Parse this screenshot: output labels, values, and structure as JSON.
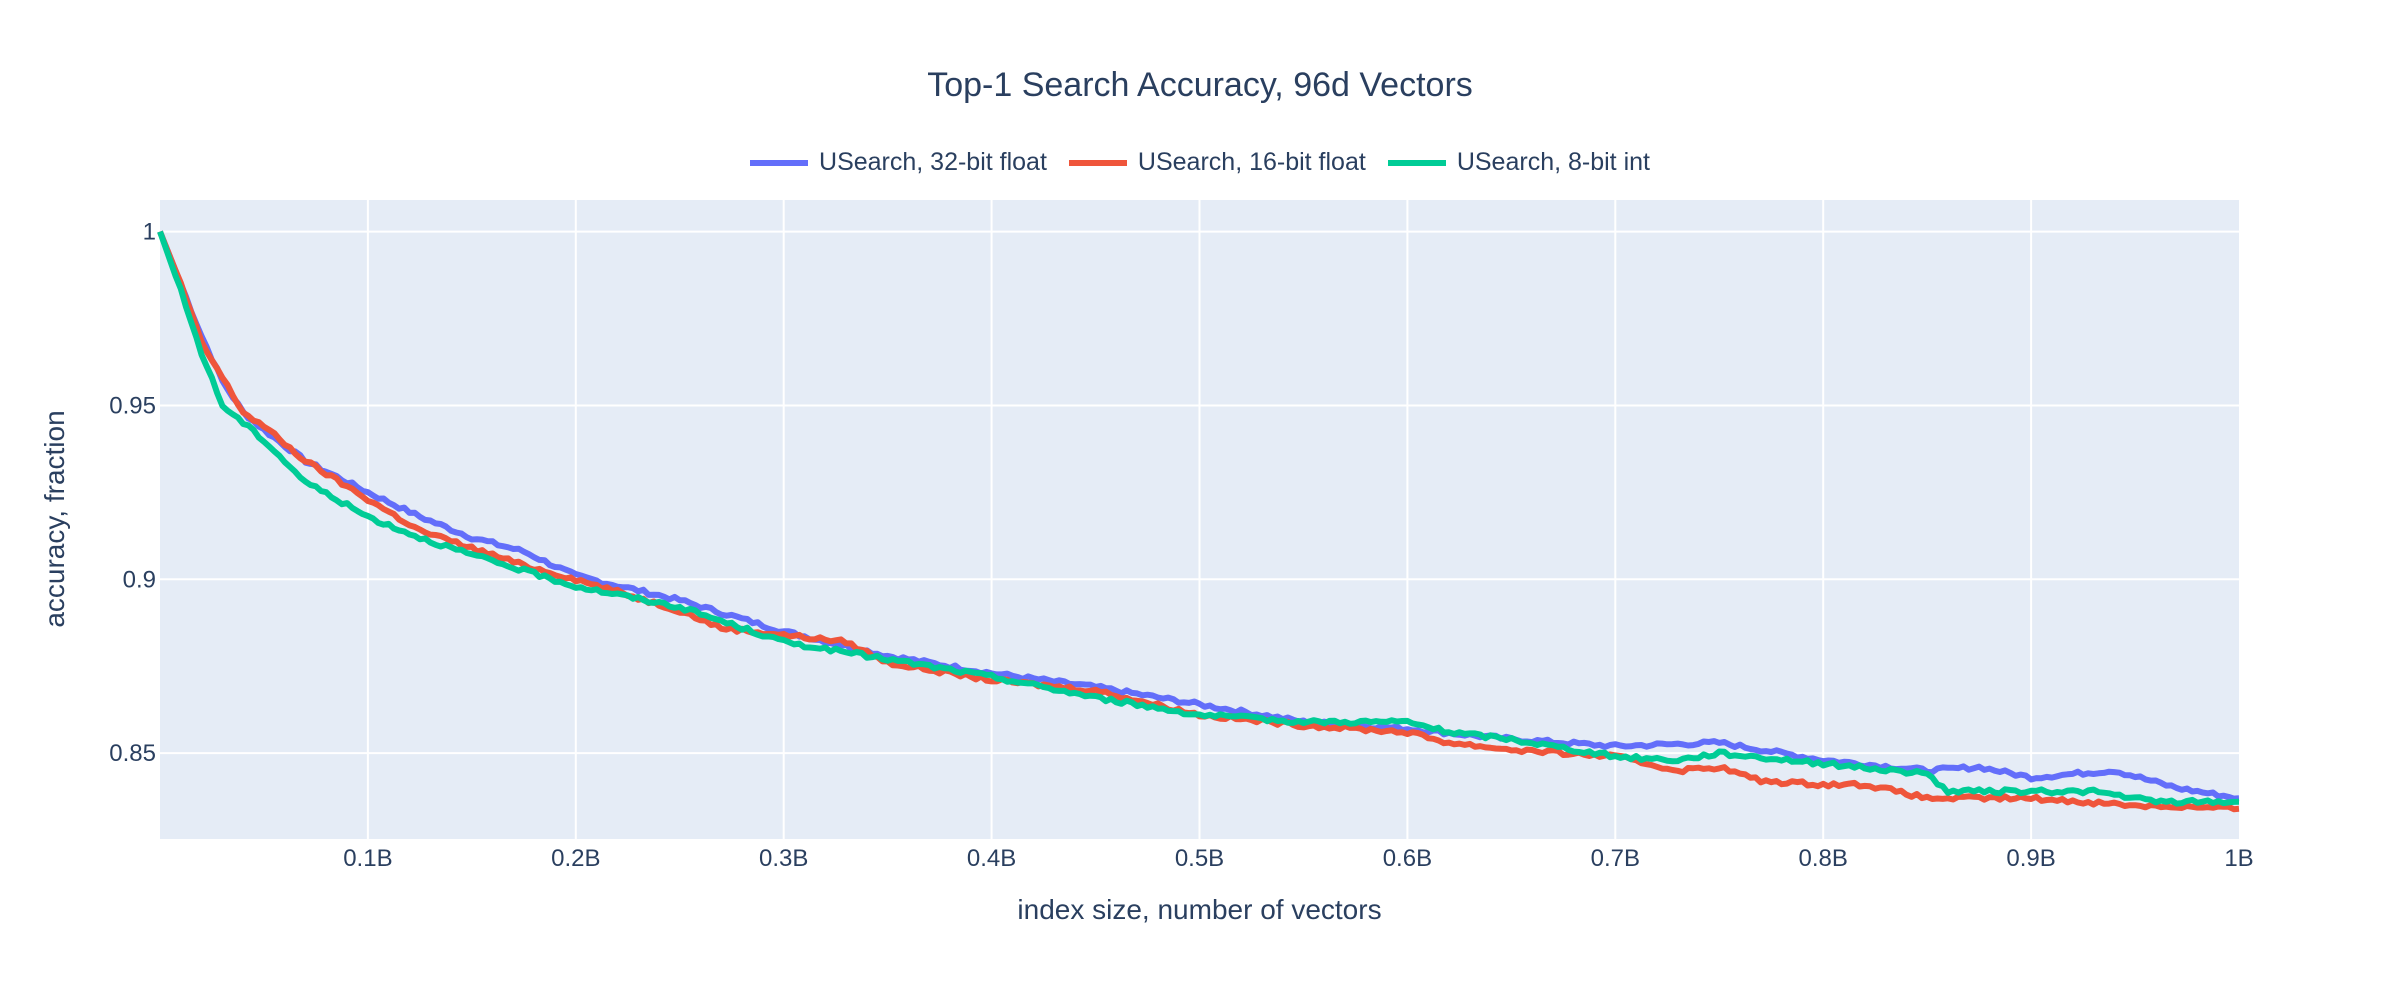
{
  "chart_data": {
    "type": "line",
    "title": "Top-1 Search Accuracy, 96d Vectors",
    "xlabel": "index size, number of vectors",
    "ylabel": "accuracy, fraction",
    "xlim": [
      0,
      1
    ],
    "ylim": [
      0.8253,
      1.0091
    ],
    "x_unit": "billions of vectors",
    "grid": true,
    "legend": "top-center, horizontal",
    "background": "#e5ecf6",
    "x_ticks": [
      {
        "value": 0.1,
        "label": "0.1B"
      },
      {
        "value": 0.2,
        "label": "0.2B"
      },
      {
        "value": 0.3,
        "label": "0.3B"
      },
      {
        "value": 0.4,
        "label": "0.4B"
      },
      {
        "value": 0.5,
        "label": "0.5B"
      },
      {
        "value": 0.6,
        "label": "0.6B"
      },
      {
        "value": 0.7,
        "label": "0.7B"
      },
      {
        "value": 0.8,
        "label": "0.8B"
      },
      {
        "value": 0.9,
        "label": "0.9B"
      },
      {
        "value": 1.0,
        "label": "1B"
      }
    ],
    "y_ticks": [
      {
        "value": 0.85,
        "label": "0.85"
      },
      {
        "value": 0.9,
        "label": "0.9"
      },
      {
        "value": 0.95,
        "label": "0.95"
      },
      {
        "value": 1.0,
        "label": "1"
      }
    ],
    "series": [
      {
        "name": "USearch, 32-bit float",
        "color": "#636efa",
        "x": [
          0,
          0.01,
          0.02,
          0.03,
          0.04,
          0.05,
          0.07,
          0.1,
          0.125,
          0.15,
          0.175,
          0.2,
          0.25,
          0.3,
          0.35,
          0.4,
          0.45,
          0.5,
          0.55,
          0.6,
          0.65,
          0.7,
          0.75,
          0.8,
          0.85,
          0.875,
          0.9,
          0.94,
          0.97,
          1.0
        ],
        "y": [
          1.0,
          0.985,
          0.97,
          0.957,
          0.948,
          0.943,
          0.934,
          0.925,
          0.918,
          0.912,
          0.908,
          0.901,
          0.894,
          0.885,
          0.878,
          0.873,
          0.869,
          0.864,
          0.859,
          0.857,
          0.854,
          0.852,
          0.853,
          0.848,
          0.845,
          0.846,
          0.843,
          0.845,
          0.84,
          0.837
        ]
      },
      {
        "name": "USearch, 16-bit float",
        "color": "#ef553b",
        "x": [
          0,
          0.01,
          0.02,
          0.03,
          0.04,
          0.05,
          0.07,
          0.1,
          0.125,
          0.15,
          0.175,
          0.2,
          0.25,
          0.27,
          0.3,
          0.33,
          0.35,
          0.4,
          0.45,
          0.5,
          0.55,
          0.6,
          0.62,
          0.65,
          0.7,
          0.73,
          0.75,
          0.77,
          0.8,
          0.82,
          0.85,
          0.9,
          0.95,
          1.0
        ],
        "y": [
          1.0,
          0.985,
          0.968,
          0.958,
          0.948,
          0.944,
          0.934,
          0.923,
          0.914,
          0.909,
          0.904,
          0.9,
          0.891,
          0.886,
          0.884,
          0.882,
          0.876,
          0.871,
          0.868,
          0.861,
          0.858,
          0.856,
          0.853,
          0.851,
          0.849,
          0.845,
          0.846,
          0.842,
          0.841,
          0.841,
          0.837,
          0.837,
          0.835,
          0.834
        ]
      },
      {
        "name": "USearch, 8-bit int",
        "color": "#00cc96",
        "x": [
          0,
          0.01,
          0.02,
          0.03,
          0.04,
          0.05,
          0.07,
          0.1,
          0.125,
          0.15,
          0.2,
          0.25,
          0.3,
          0.35,
          0.4,
          0.45,
          0.5,
          0.55,
          0.6,
          0.62,
          0.65,
          0.7,
          0.73,
          0.75,
          0.8,
          0.85,
          0.86,
          0.9,
          0.93,
          0.96,
          1.0
        ],
        "y": [
          1.0,
          0.983,
          0.965,
          0.95,
          0.945,
          0.94,
          0.928,
          0.918,
          0.912,
          0.907,
          0.898,
          0.892,
          0.882,
          0.877,
          0.872,
          0.866,
          0.861,
          0.859,
          0.859,
          0.856,
          0.854,
          0.849,
          0.848,
          0.85,
          0.847,
          0.844,
          0.839,
          0.839,
          0.839,
          0.836,
          0.836
        ]
      }
    ]
  }
}
